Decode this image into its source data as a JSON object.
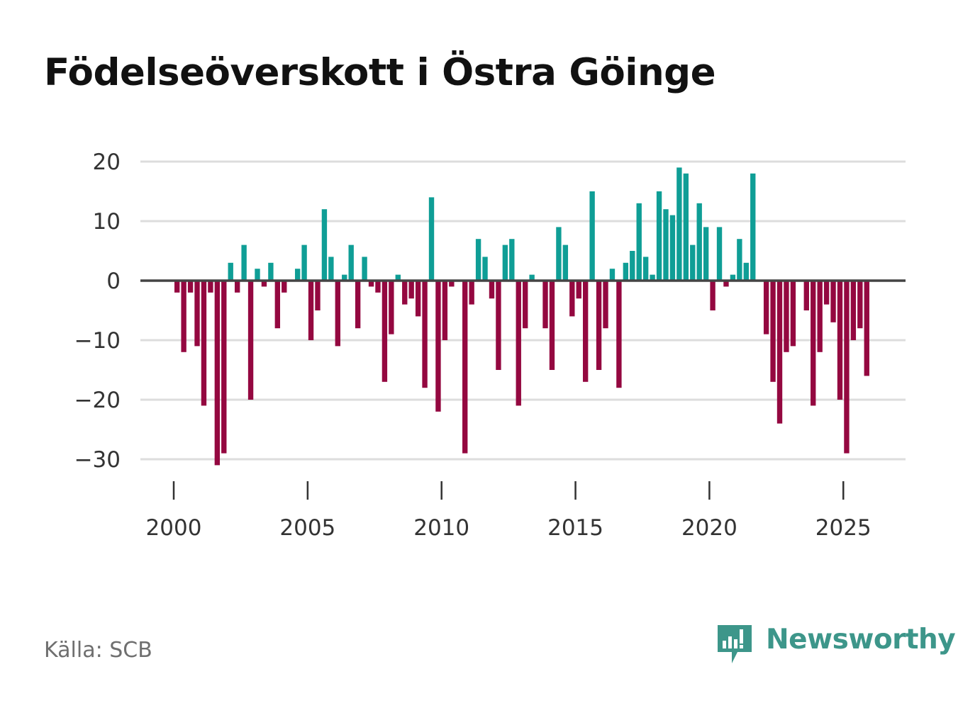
{
  "title": "Födelseöverskott i Östra Göinge",
  "source": "Källa: SCB",
  "brand": {
    "name": "Newsworthy",
    "icon": "bar-chart-speech-bubble-icon",
    "color": "#3d968a"
  },
  "colors": {
    "positive": "#0f9e96",
    "negative": "#940840",
    "zero_line": "#444444",
    "grid": "#dddddd"
  },
  "chart_data": {
    "type": "bar",
    "title": "Födelseöverskott i Östra Göinge",
    "xlabel": "",
    "ylabel": "",
    "ylim": [
      -33,
      20
    ],
    "xlim": [
      1999.7,
      2027.3
    ],
    "yticks": [
      20,
      10,
      0,
      -10,
      -20,
      -30
    ],
    "ytick_labels": [
      "20",
      "10",
      "0",
      "−10",
      "−20",
      "−30"
    ],
    "xticks": [
      2000,
      2005,
      2010,
      2015,
      2020,
      2025
    ],
    "xtick_labels": [
      "2000",
      "2005",
      "2010",
      "2015",
      "2020",
      "2025"
    ],
    "frequency": "quarterly",
    "series": [
      {
        "name": "Födelseöverskott",
        "start": 2000.0,
        "step": 0.25,
        "values": [
          -2,
          -12,
          -2,
          -11,
          -21,
          -2,
          -31,
          -29,
          3,
          -2,
          6,
          -20,
          2,
          -1,
          3,
          -8,
          -2,
          0,
          2,
          6,
          -10,
          -5,
          12,
          4,
          -11,
          1,
          6,
          -8,
          4,
          -1,
          -2,
          -17,
          -9,
          1,
          -4,
          -3,
          -6,
          -18,
          14,
          -22,
          -10,
          -1,
          0,
          -29,
          -4,
          7,
          4,
          -3,
          -15,
          6,
          7,
          -21,
          -8,
          1,
          0,
          -8,
          -15,
          9,
          6,
          -6,
          -3,
          -17,
          15,
          -15,
          -8,
          2,
          -18,
          3,
          5,
          13,
          4,
          1,
          15,
          12,
          11,
          19,
          18,
          6,
          13,
          9,
          -5,
          9,
          -1,
          1,
          7,
          3,
          18,
          0,
          -9,
          -17,
          -24,
          -12,
          -11,
          0,
          -5,
          -21,
          -12,
          -4,
          -7,
          -20,
          -29,
          -10,
          -8,
          -16
        ]
      }
    ]
  }
}
